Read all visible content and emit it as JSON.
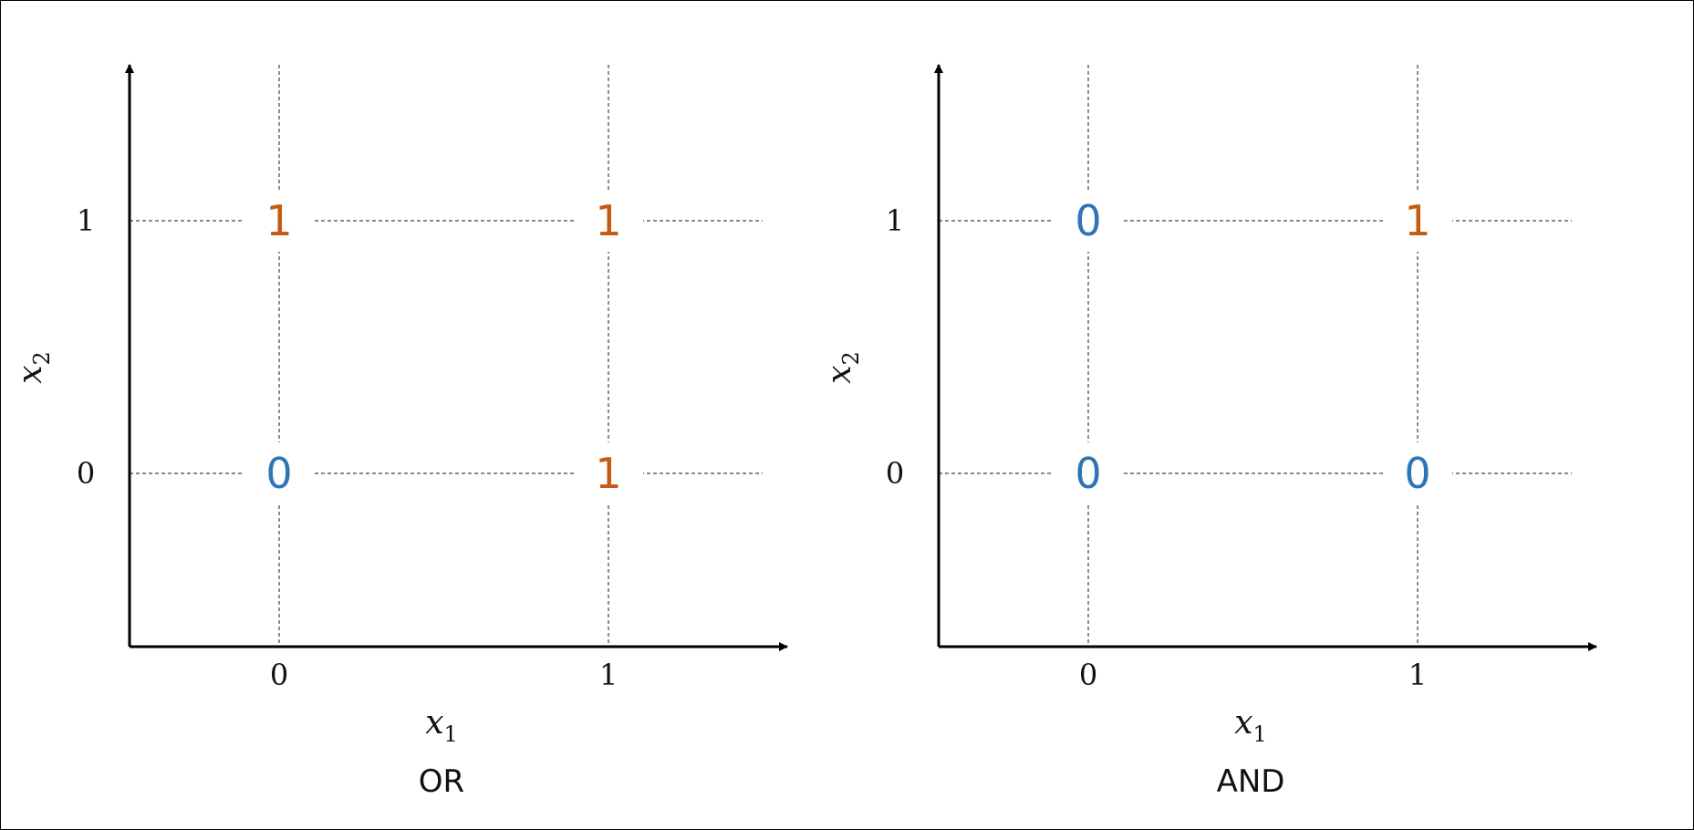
{
  "colors": {
    "zero": "#2E75B6",
    "one": "#C55A11",
    "axis": "#000000",
    "grid": "#444444"
  },
  "panels": [
    {
      "caption": "OR",
      "x_label": {
        "var": "x",
        "sub": "1"
      },
      "y_label": {
        "var": "x",
        "sub": "2"
      },
      "x_ticks": [
        "0",
        "1"
      ],
      "y_ticks": [
        "0",
        "1"
      ],
      "cells": [
        {
          "x1": 0,
          "x2": 1,
          "value": "1"
        },
        {
          "x1": 1,
          "x2": 1,
          "value": "1"
        },
        {
          "x1": 0,
          "x2": 0,
          "value": "0"
        },
        {
          "x1": 1,
          "x2": 0,
          "value": "1"
        }
      ]
    },
    {
      "caption": "AND",
      "x_label": {
        "var": "x",
        "sub": "1"
      },
      "y_label": {
        "var": "x",
        "sub": "2"
      },
      "x_ticks": [
        "0",
        "1"
      ],
      "y_ticks": [
        "0",
        "1"
      ],
      "cells": [
        {
          "x1": 0,
          "x2": 1,
          "value": "0"
        },
        {
          "x1": 1,
          "x2": 1,
          "value": "1"
        },
        {
          "x1": 0,
          "x2": 0,
          "value": "0"
        },
        {
          "x1": 1,
          "x2": 0,
          "value": "0"
        }
      ]
    }
  ]
}
